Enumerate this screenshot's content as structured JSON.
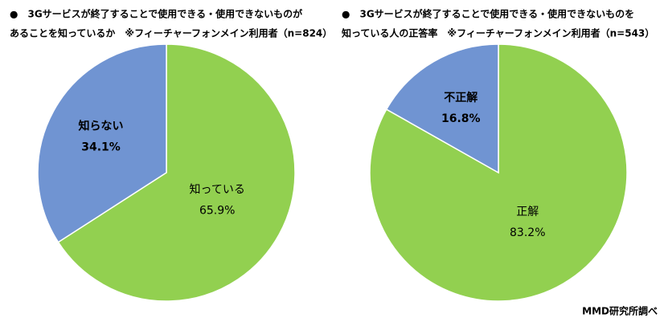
{
  "chart_data": [
    {
      "type": "pie",
      "title": [
        "●　3Gサービスが終了することで使用できる・使用できないものが",
        "あることを知っているか　※フィーチャーフォンメイン利用者（n=824）"
      ],
      "categories": [
        "知っている",
        "知らない"
      ],
      "values": [
        65.9,
        34.1
      ],
      "value_labels": [
        "65.9%",
        "34.1%"
      ],
      "colors": [
        "#92d050",
        "#7094d2"
      ]
    },
    {
      "type": "pie",
      "title": [
        "●　3Gサービスが終了することで使用できる・使用できないものを",
        "知っている人の正答率　※フィーチャーフォンメイン利用者（n=543）"
      ],
      "categories": [
        "正解",
        "不正解"
      ],
      "values": [
        83.2,
        16.8
      ],
      "value_labels": [
        "83.2%",
        "16.8%"
      ],
      "colors": [
        "#92d050",
        "#7094d2"
      ]
    }
  ],
  "source": "MMD研究所調べ"
}
